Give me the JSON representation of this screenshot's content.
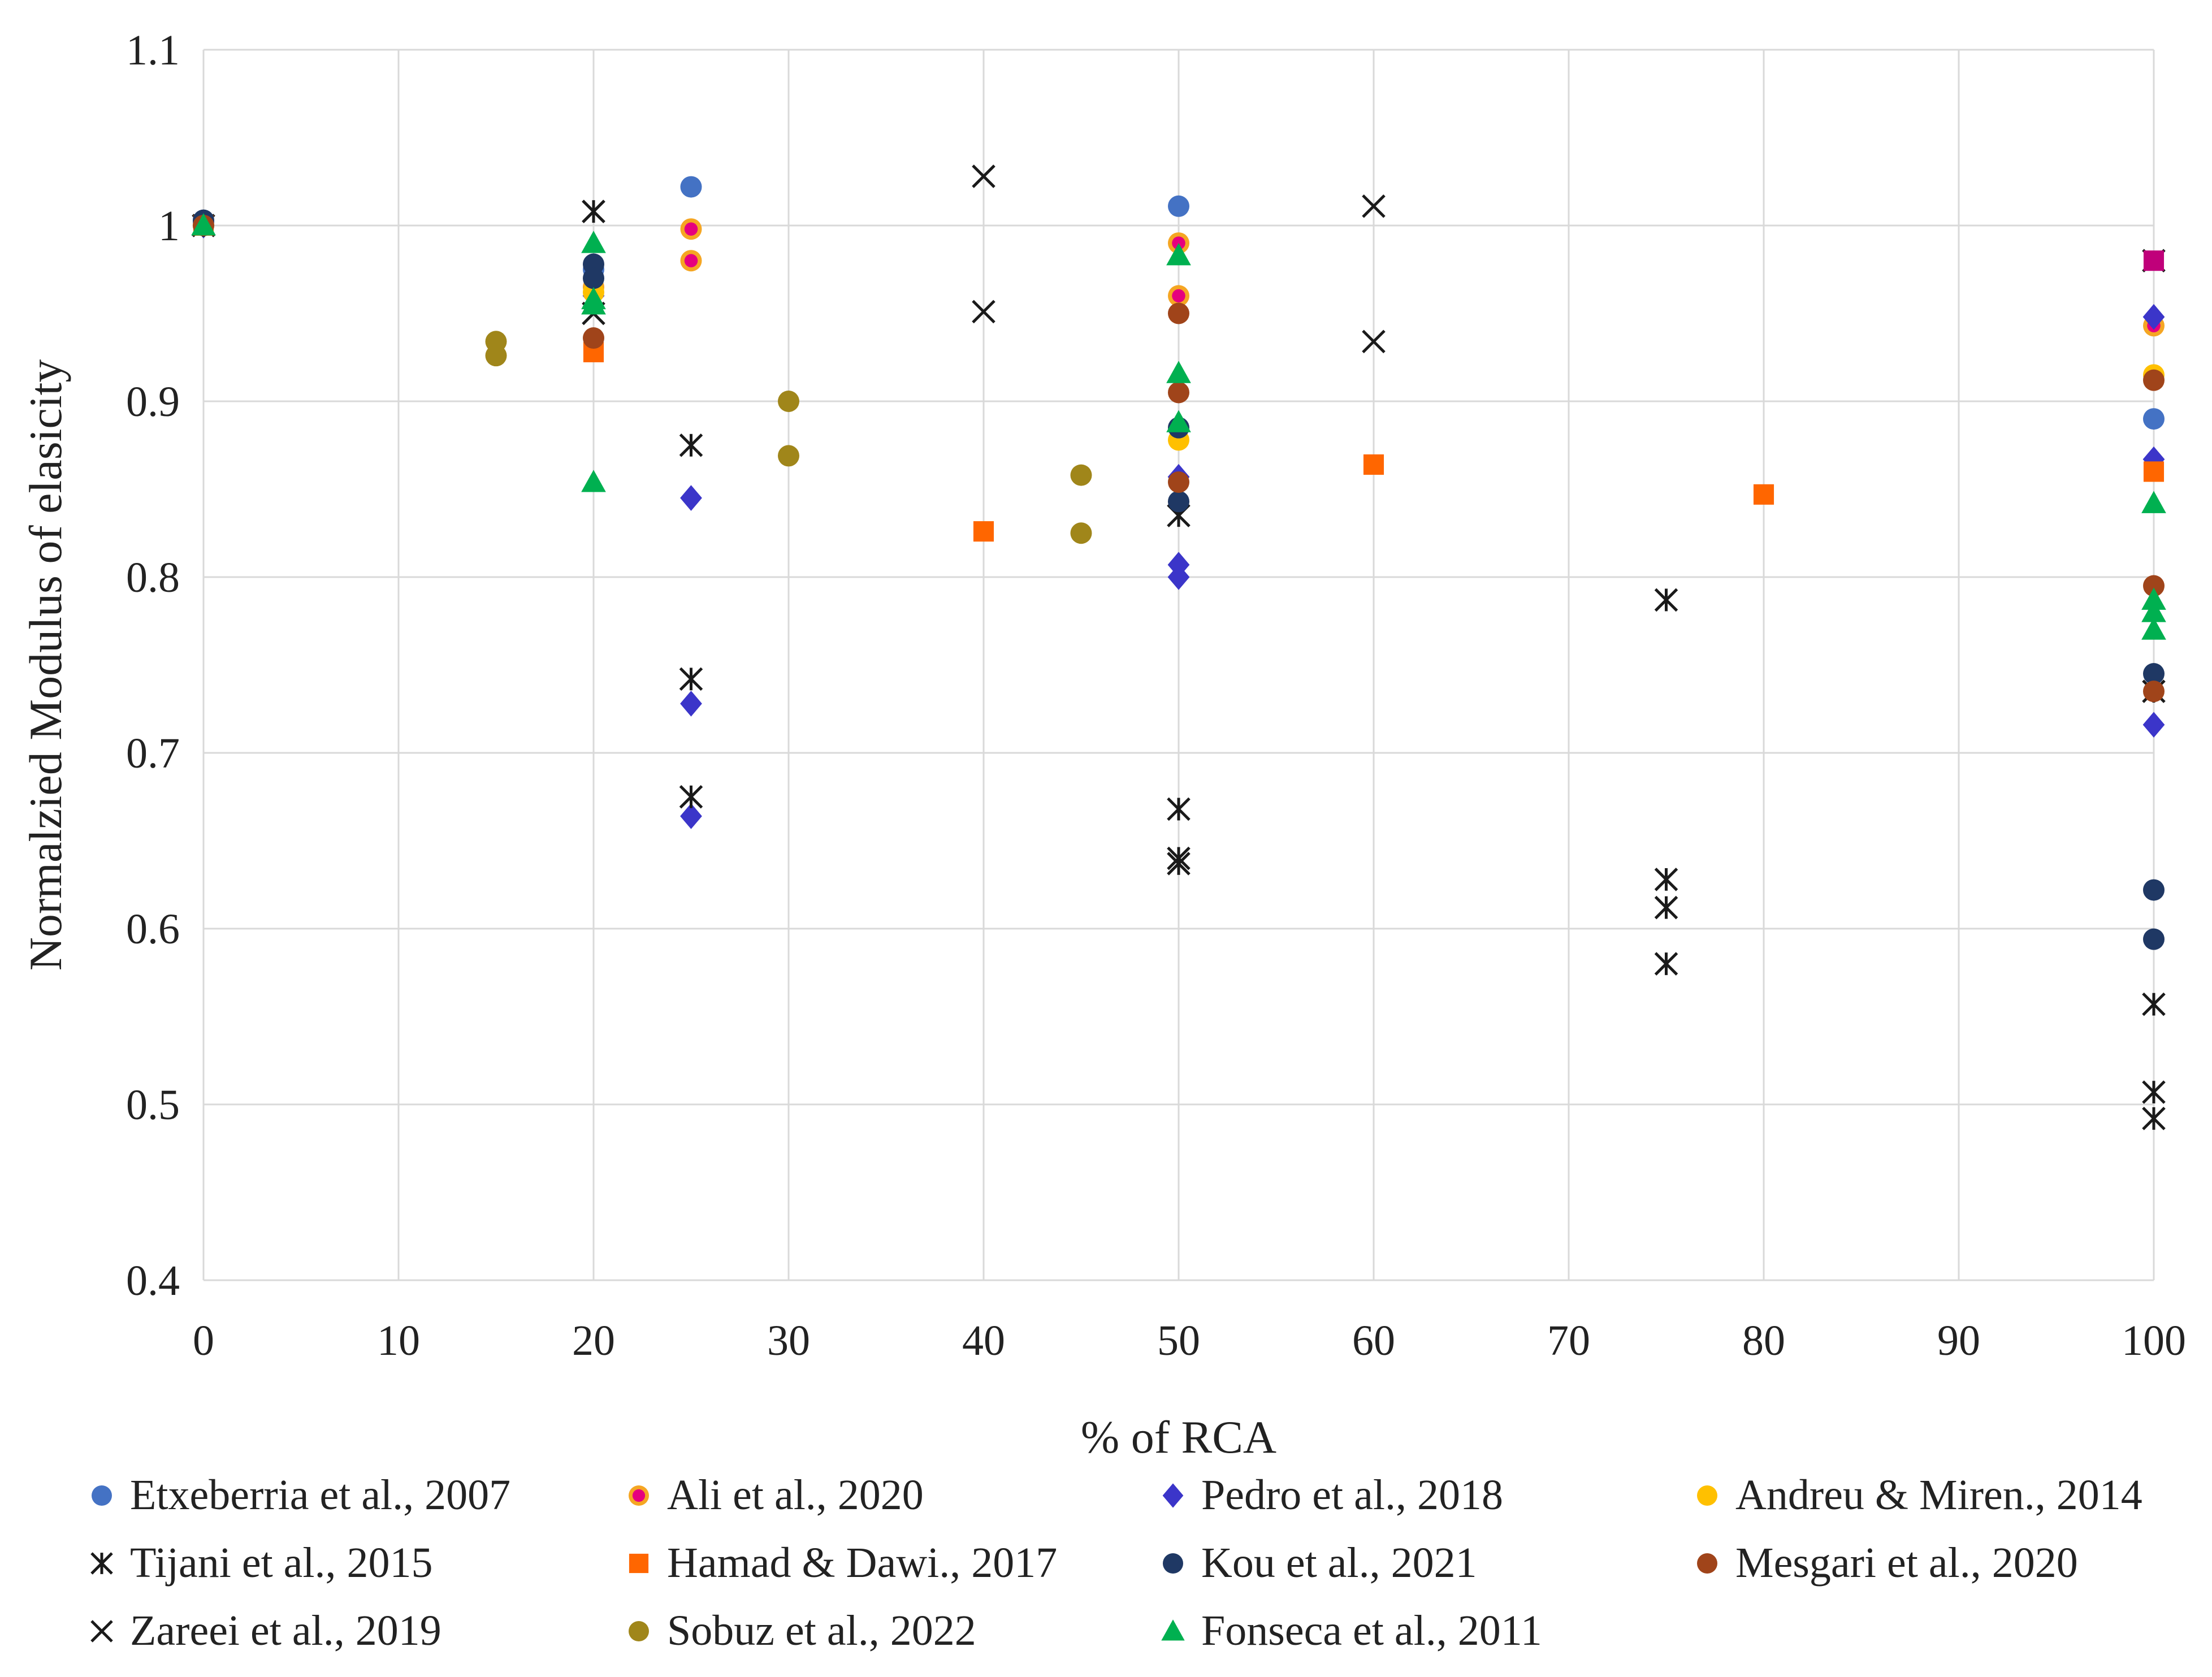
{
  "chart_data": {
    "type": "scatter",
    "title": "",
    "xlabel": "% of RCA",
    "ylabel": "Normalzied Modulus of elasicity",
    "xlim": [
      0,
      100
    ],
    "ylim": [
      0.4,
      1.1
    ],
    "x_ticks": [
      0,
      10,
      20,
      30,
      40,
      50,
      60,
      70,
      80,
      90,
      100
    ],
    "y_ticks": [
      0.4,
      0.5,
      0.6,
      0.7,
      0.8,
      0.9,
      1,
      1.1
    ],
    "x_tick_labels": [
      "0",
      "10",
      "20",
      "30",
      "40",
      "50",
      "60",
      "70",
      "80",
      "90",
      "100"
    ],
    "y_tick_labels": [
      "0.4",
      "0.5",
      "0.6",
      "0.7",
      "0.8",
      "0.9",
      "1",
      "1.1"
    ],
    "grid": true,
    "legend_position": "bottom",
    "series": [
      {
        "name": "Etxeberria et al., 2007",
        "marker": "circle",
        "color": "#4472C4",
        "points": [
          [
            0,
            1.002
          ],
          [
            20,
            0.975
          ],
          [
            25,
            1.022
          ],
          [
            50,
            1.011
          ],
          [
            100,
            0.89
          ]
        ]
      },
      {
        "name": "Ali et al., 2020",
        "marker": "circle-ringed",
        "color": "#E6007E",
        "ring_color": "#F5A623",
        "points": [
          [
            0,
            1.0
          ],
          [
            20,
            0.965
          ],
          [
            25,
            0.998
          ],
          [
            25,
            0.98
          ],
          [
            50,
            0.99
          ],
          [
            50,
            0.96
          ],
          [
            100,
            0.943
          ]
        ]
      },
      {
        "name": "Pedro et al., 2018",
        "marker": "diamond",
        "color": "#3B35C9",
        "points": [
          [
            0,
            1.0
          ],
          [
            20,
            0.96
          ],
          [
            25,
            0.845
          ],
          [
            25,
            0.728
          ],
          [
            25,
            0.664
          ],
          [
            50,
            0.857
          ],
          [
            50,
            0.807
          ],
          [
            50,
            0.8
          ],
          [
            100,
            0.948
          ],
          [
            100,
            0.867
          ],
          [
            100,
            0.716
          ]
        ]
      },
      {
        "name": "Andreu & Miren., 2014",
        "marker": "circle",
        "color": "#FFC000",
        "points": [
          [
            0,
            1.0
          ],
          [
            20,
            0.962
          ],
          [
            50,
            0.878
          ],
          [
            100,
            0.915
          ]
        ]
      },
      {
        "name": "Tijani et al., 2015",
        "marker": "asterisk",
        "color": "#1a1a1a",
        "points": [
          [
            0,
            1.0
          ],
          [
            20,
            1.008
          ],
          [
            25,
            0.875
          ],
          [
            25,
            0.742
          ],
          [
            25,
            0.675
          ],
          [
            50,
            0.835
          ],
          [
            50,
            0.668
          ],
          [
            50,
            0.64
          ],
          [
            50,
            0.637
          ],
          [
            75,
            0.787
          ],
          [
            75,
            0.628
          ],
          [
            75,
            0.612
          ],
          [
            75,
            0.58
          ],
          [
            100,
            0.735
          ],
          [
            100,
            0.557
          ],
          [
            100,
            0.507
          ],
          [
            100,
            0.492
          ]
        ]
      },
      {
        "name": "Hamad & Dawi., 2017",
        "marker": "square",
        "color": "#FF6600",
        "points": [
          [
            0,
            1.0
          ],
          [
            20,
            0.928
          ],
          [
            40,
            0.826
          ],
          [
            60,
            0.864
          ],
          [
            80,
            0.847
          ],
          [
            100,
            0.86
          ]
        ]
      },
      {
        "name": "Kou et al., 2021",
        "marker": "circle",
        "color": "#1F3864",
        "points": [
          [
            0,
            1.003
          ],
          [
            20,
            0.978
          ],
          [
            20,
            0.97
          ],
          [
            50,
            0.885
          ],
          [
            50,
            0.843
          ],
          [
            100,
            0.745
          ],
          [
            100,
            0.622
          ],
          [
            100,
            0.594
          ]
        ]
      },
      {
        "name": "Mesgari et al., 2020",
        "marker": "circle",
        "color": "#A0441A",
        "points": [
          [
            0,
            1.0
          ],
          [
            20,
            0.936
          ],
          [
            50,
            0.95
          ],
          [
            50,
            0.905
          ],
          [
            50,
            0.854
          ],
          [
            100,
            0.912
          ],
          [
            100,
            0.795
          ],
          [
            100,
            0.735
          ]
        ]
      },
      {
        "name": "Zareei et al., 2019",
        "marker": "x",
        "color": "#1a1a1a",
        "points": [
          [
            20,
            1.008
          ],
          [
            20,
            0.95
          ],
          [
            40,
            1.028
          ],
          [
            40,
            0.951
          ],
          [
            60,
            1.011
          ],
          [
            60,
            0.934
          ],
          [
            100,
            0.98
          ]
        ]
      },
      {
        "name": "Sobuz et al., 2022",
        "marker": "circle",
        "color": "#A0861A",
        "points": [
          [
            15,
            0.934
          ],
          [
            15,
            0.926
          ],
          [
            30,
            0.9
          ],
          [
            30,
            0.869
          ],
          [
            45,
            0.858
          ],
          [
            45,
            0.825
          ]
        ]
      },
      {
        "name": "Fonseca et al., 2011",
        "marker": "triangle",
        "color": "#00B050",
        "points": [
          [
            0,
            1.0
          ],
          [
            20,
            0.99
          ],
          [
            20,
            0.958
          ],
          [
            20,
            0.955
          ],
          [
            20,
            0.854
          ],
          [
            50,
            0.983
          ],
          [
            50,
            0.916
          ],
          [
            50,
            0.888
          ],
          [
            100,
            0.842
          ],
          [
            100,
            0.787
          ],
          [
            100,
            0.78
          ],
          [
            100,
            0.77
          ]
        ]
      },
      {
        "name": "",
        "marker": "square",
        "color": "#C0007A",
        "points": [
          [
            100,
            0.98
          ]
        ]
      }
    ]
  }
}
